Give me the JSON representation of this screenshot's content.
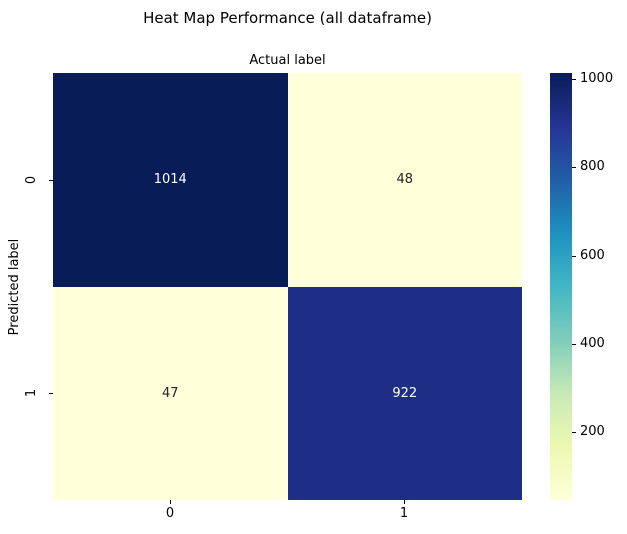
{
  "chart_data": {
    "type": "heatmap",
    "title": "Heat Map Performance (all dataframe)",
    "x_axis_label": "Actual label",
    "y_axis_label": "Predicted label",
    "x_tick_labels": [
      "0",
      "1"
    ],
    "y_tick_labels": [
      "0",
      "1"
    ],
    "matrix": [
      [
        1014,
        48
      ],
      [
        47,
        922
      ]
    ],
    "vmin": 47,
    "vmax": 1014,
    "colormap": "YlGnBu",
    "legend_position": "right-colorbar",
    "grid": false,
    "colorbar_tick_labels": [
      "1000",
      "800",
      "600",
      "400",
      "200"
    ],
    "cell_colors": [
      [
        "#081d58",
        "#ffffd9"
      ],
      [
        "#ffffd9",
        "#1e2e86"
      ]
    ],
    "cell_text_colors": [
      [
        "#ffffff",
        "#262626"
      ],
      [
        "#262626",
        "#ffffff"
      ]
    ],
    "colorbar_gradient": [
      {
        "color": "#081d58",
        "pos": 0
      },
      {
        "color": "#253494",
        "pos": 12.5
      },
      {
        "color": "#225ea8",
        "pos": 25
      },
      {
        "color": "#1d91c0",
        "pos": 37.5
      },
      {
        "color": "#41b6c4",
        "pos": 50
      },
      {
        "color": "#7fcdbb",
        "pos": 62.5
      },
      {
        "color": "#c7e9b4",
        "pos": 75
      },
      {
        "color": "#edf8b1",
        "pos": 87.5
      },
      {
        "color": "#ffffd9",
        "pos": 100
      }
    ]
  }
}
